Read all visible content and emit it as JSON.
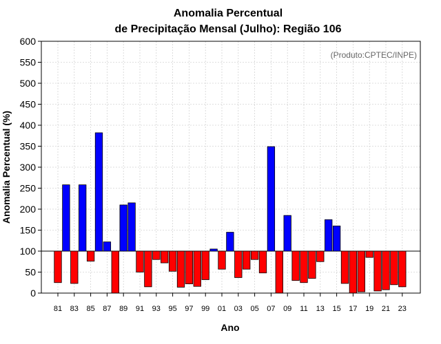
{
  "chart_data": {
    "type": "bar",
    "title": "Anomalia Percentual",
    "subtitle": "de Precipitação Mensal (Julho): Região 106",
    "xlabel": "Ano",
    "ylabel": "Anomalia Percentual (%)",
    "credit": "(Produto:CPTEC/INPE)",
    "ylim": [
      0,
      600
    ],
    "yticks": [
      "0",
      "50",
      "100",
      "150",
      "200",
      "250",
      "300",
      "350",
      "400",
      "450",
      "500",
      "550",
      "600"
    ],
    "baseline": 100,
    "grid": true,
    "categories": [
      "81",
      "82",
      "83",
      "84",
      "85",
      "86",
      "87",
      "88",
      "89",
      "90",
      "91",
      "92",
      "93",
      "94",
      "95",
      "96",
      "97",
      "98",
      "99",
      "00",
      "01",
      "02",
      "03",
      "04",
      "05",
      "06",
      "07",
      "08",
      "09",
      "10",
      "11",
      "12",
      "13",
      "14",
      "15",
      "16",
      "17",
      "18",
      "19",
      "20",
      "21",
      "22",
      "23"
    ],
    "xtick_labels": [
      "81",
      "83",
      "85",
      "87",
      "89",
      "91",
      "93",
      "95",
      "97",
      "99",
      "01",
      "03",
      "05",
      "07",
      "09",
      "11",
      "13",
      "15",
      "17",
      "19",
      "21",
      "23"
    ],
    "values": [
      25,
      258,
      23,
      258,
      76,
      382,
      122,
      0,
      210,
      215,
      50,
      15,
      80,
      72,
      52,
      14,
      22,
      16,
      32,
      105,
      57,
      145,
      37,
      57,
      80,
      48,
      349,
      0,
      185,
      30,
      25,
      35,
      75,
      175,
      160,
      23,
      0,
      3,
      85,
      5,
      8,
      20,
      15
    ],
    "colors": {
      "above": "#0000ff",
      "below": "#ff0000"
    }
  }
}
